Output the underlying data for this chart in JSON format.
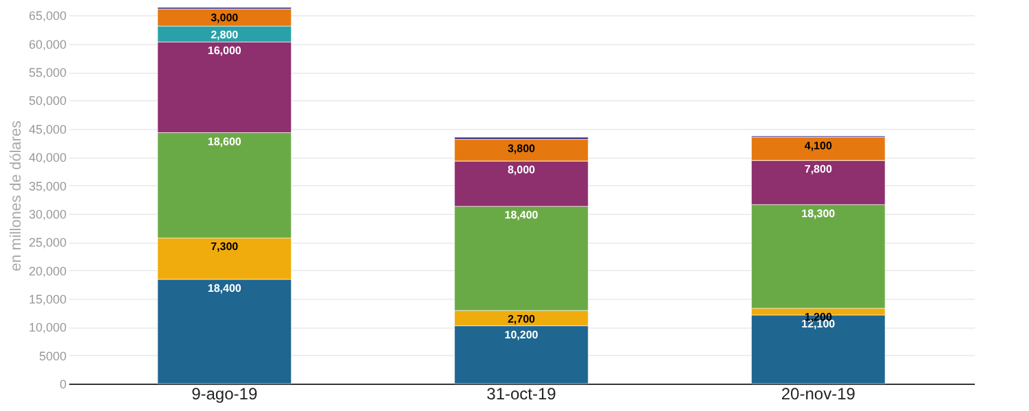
{
  "chart_data": {
    "type": "bar",
    "stacked": true,
    "ylabel": "en millones de dólares",
    "categories": [
      "9-ago-19",
      "31-oct-19",
      "20-nov-19"
    ],
    "series": [
      {
        "color": "#1f6691",
        "values": [
          18400,
          10200,
          12100
        ],
        "value_labels": [
          "18,400",
          "10,200",
          "12,100"
        ]
      },
      {
        "color": "#f0ac0c",
        "values": [
          7300,
          2700,
          1200
        ],
        "value_labels": [
          "7,300",
          "2,700",
          "1,200"
        ]
      },
      {
        "color": "#6aaa46",
        "values": [
          18600,
          18400,
          18300
        ],
        "value_labels": [
          "18,600",
          "18,400",
          "18,300"
        ]
      },
      {
        "color": "#8e2f6e",
        "values": [
          16000,
          8000,
          7800
        ],
        "value_labels": [
          "16,000",
          "8,000",
          "7,800"
        ]
      },
      {
        "color": "#2aa1a8",
        "values": [
          2800,
          0,
          0
        ],
        "value_labels": [
          "2,800",
          null,
          null
        ]
      },
      {
        "color": "#e5780e",
        "values": [
          3000,
          3800,
          4100
        ],
        "value_labels": [
          "3,000",
          "3,800",
          "4,100"
        ]
      },
      {
        "color": "#4a3a8a",
        "values": [
          300,
          400,
          200
        ],
        "value_labels": [
          null,
          null,
          null
        ]
      }
    ],
    "ylim": [
      0,
      66500
    ],
    "yticks": [
      0,
      {
        "value": 5000,
        "label": "5000"
      },
      {
        "value": 10000,
        "label": "10,000"
      },
      {
        "value": 15000,
        "label": "15,000"
      },
      {
        "value": 20000,
        "label": "20,000"
      },
      {
        "value": 25000,
        "label": "25,000"
      },
      {
        "value": 30000,
        "label": "30,000"
      },
      {
        "value": 35000,
        "label": "35,000"
      },
      {
        "value": 40000,
        "label": "40,000"
      },
      {
        "value": 45000,
        "label": "45,000"
      },
      {
        "value": 50000,
        "label": "50,000"
      },
      {
        "value": 55000,
        "label": "55,000"
      },
      {
        "value": 60000,
        "label": "60,000"
      },
      {
        "value": 65000,
        "label": "65,000"
      }
    ],
    "grid": "y",
    "legend": false
  }
}
